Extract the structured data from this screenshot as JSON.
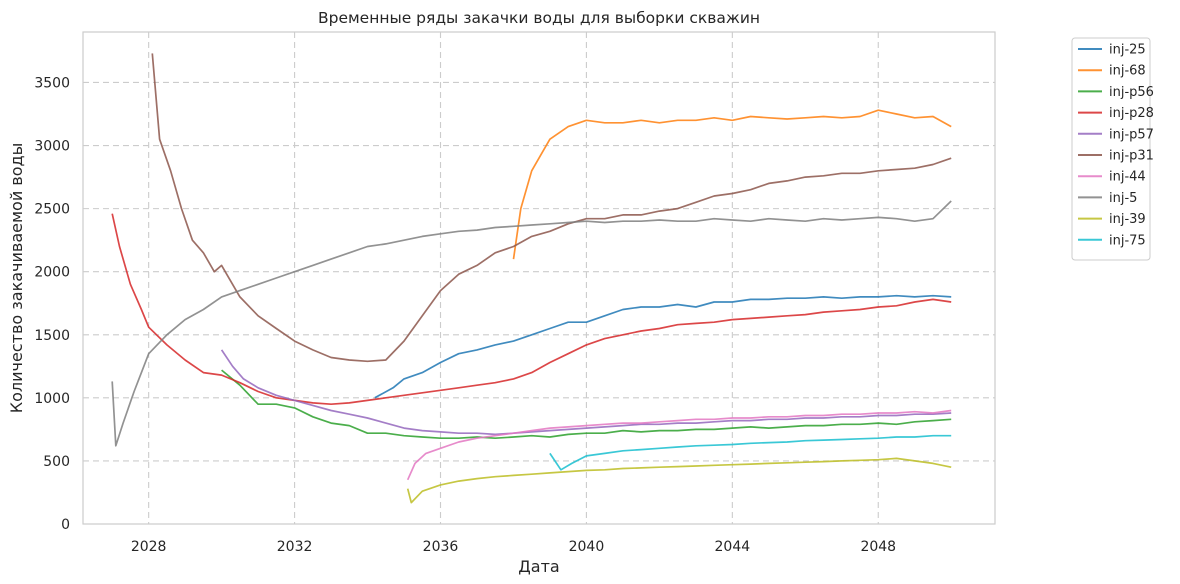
{
  "chart_data": {
    "type": "line",
    "title": "Временные ряды закачки воды для выборки скважин",
    "xlabel": "Дата",
    "ylabel": "Количество закачиваемой воды",
    "xlim": [
      2026.2,
      2051.2
    ],
    "ylim": [
      0,
      3900
    ],
    "x_ticks": [
      2028,
      2032,
      2036,
      2040,
      2044,
      2048
    ],
    "y_ticks": [
      0,
      500,
      1000,
      1500,
      2000,
      2500,
      3000,
      3500
    ],
    "grid": true,
    "legend_position": "outside-right",
    "series": [
      {
        "name": "inj-25",
        "color": "#1f77b4",
        "x": [
          2034.2,
          2034.7,
          2035.0,
          2035.5,
          2036.0,
          2036.5,
          2037.0,
          2037.5,
          2038.0,
          2038.5,
          2039.0,
          2039.5,
          2040.0,
          2040.5,
          2041.0,
          2041.5,
          2042.0,
          2042.5,
          2043.0,
          2043.5,
          2044.0,
          2044.5,
          2045.0,
          2045.5,
          2046.0,
          2046.5,
          2047.0,
          2047.5,
          2048.0,
          2048.5,
          2049.0,
          2049.5,
          2050.0
        ],
        "y": [
          1000,
          1080,
          1150,
          1200,
          1280,
          1350,
          1380,
          1420,
          1450,
          1500,
          1550,
          1600,
          1600,
          1650,
          1700,
          1720,
          1720,
          1740,
          1720,
          1760,
          1760,
          1780,
          1780,
          1790,
          1790,
          1800,
          1790,
          1800,
          1800,
          1810,
          1800,
          1810,
          1800
        ]
      },
      {
        "name": "inj-68",
        "color": "#ff7f0e",
        "x": [
          2038.0,
          2038.2,
          2038.5,
          2038.8,
          2039.0,
          2039.5,
          2040.0,
          2040.5,
          2041.0,
          2041.5,
          2042.0,
          2042.5,
          2043.0,
          2043.5,
          2044.0,
          2044.5,
          2045.0,
          2045.5,
          2046.0,
          2046.5,
          2047.0,
          2047.5,
          2048.0,
          2048.5,
          2049.0,
          2049.5,
          2050.0
        ],
        "y": [
          2100,
          2500,
          2800,
          2950,
          3050,
          3150,
          3200,
          3180,
          3180,
          3200,
          3180,
          3200,
          3200,
          3220,
          3200,
          3230,
          3220,
          3210,
          3220,
          3230,
          3220,
          3230,
          3280,
          3250,
          3220,
          3230,
          3150
        ]
      },
      {
        "name": "inj-p56",
        "color": "#2ca02c",
        "x": [
          2030.0,
          2030.5,
          2031.0,
          2031.5,
          2032.0,
          2032.5,
          2033.0,
          2033.5,
          2034.0,
          2034.5,
          2035.0,
          2035.5,
          2036.0,
          2036.5,
          2037.0,
          2037.5,
          2038.0,
          2038.5,
          2039.0,
          2039.5,
          2040.0,
          2040.5,
          2041.0,
          2041.5,
          2042.0,
          2042.5,
          2043.0,
          2043.5,
          2044.0,
          2044.5,
          2045.0,
          2045.5,
          2046.0,
          2046.5,
          2047.0,
          2047.5,
          2048.0,
          2048.5,
          2049.0,
          2049.5,
          2050.0
        ],
        "y": [
          1220,
          1100,
          950,
          950,
          920,
          850,
          800,
          780,
          720,
          720,
          700,
          690,
          680,
          680,
          690,
          680,
          690,
          700,
          690,
          710,
          720,
          720,
          740,
          730,
          740,
          740,
          750,
          750,
          760,
          770,
          760,
          770,
          780,
          780,
          790,
          790,
          800,
          790,
          810,
          820,
          830
        ]
      },
      {
        "name": "inj-p28",
        "color": "#d62728",
        "x": [
          2027.0,
          2027.2,
          2027.5,
          2027.8,
          2028.0,
          2028.5,
          2029.0,
          2029.5,
          2030.0,
          2030.5,
          2031.0,
          2031.5,
          2032.0,
          2032.5,
          2033.0,
          2033.5,
          2034.0,
          2034.5,
          2035.0,
          2035.5,
          2036.0,
          2036.5,
          2037.0,
          2037.5,
          2038.0,
          2038.5,
          2039.0,
          2039.5,
          2040.0,
          2040.5,
          2041.0,
          2041.5,
          2042.0,
          2042.5,
          2043.0,
          2043.5,
          2044.0,
          2044.5,
          2045.0,
          2045.5,
          2046.0,
          2046.5,
          2047.0,
          2047.5,
          2048.0,
          2048.5,
          2049.0,
          2049.5,
          2050.0
        ],
        "y": [
          2460,
          2200,
          1900,
          1700,
          1560,
          1420,
          1300,
          1200,
          1180,
          1120,
          1050,
          1000,
          980,
          960,
          950,
          960,
          980,
          1000,
          1020,
          1040,
          1060,
          1080,
          1100,
          1120,
          1150,
          1200,
          1280,
          1350,
          1420,
          1470,
          1500,
          1530,
          1550,
          1580,
          1590,
          1600,
          1620,
          1630,
          1640,
          1650,
          1660,
          1680,
          1690,
          1700,
          1720,
          1730,
          1760,
          1780,
          1760
        ]
      },
      {
        "name": "inj-p57",
        "color": "#9467bd",
        "x": [
          2030.0,
          2030.3,
          2030.6,
          2031.0,
          2031.5,
          2032.0,
          2032.5,
          2033.0,
          2033.5,
          2034.0,
          2034.5,
          2035.0,
          2035.5,
          2036.0,
          2036.5,
          2037.0,
          2037.5,
          2038.0,
          2038.5,
          2039.0,
          2039.5,
          2040.0,
          2040.5,
          2041.0,
          2041.5,
          2042.0,
          2042.5,
          2043.0,
          2043.5,
          2044.0,
          2044.5,
          2045.0,
          2045.5,
          2046.0,
          2046.5,
          2047.0,
          2047.5,
          2048.0,
          2048.5,
          2049.0,
          2049.5,
          2050.0
        ],
        "y": [
          1380,
          1250,
          1150,
          1080,
          1020,
          980,
          940,
          900,
          870,
          840,
          800,
          760,
          740,
          730,
          720,
          720,
          710,
          720,
          730,
          740,
          750,
          760,
          770,
          780,
          790,
          790,
          800,
          800,
          810,
          820,
          820,
          830,
          830,
          840,
          840,
          850,
          850,
          860,
          860,
          870,
          870,
          880
        ]
      },
      {
        "name": "inj-p31",
        "color": "#8c564b",
        "x": [
          2028.1,
          2028.3,
          2028.6,
          2028.9,
          2029.2,
          2029.5,
          2029.8,
          2030.0,
          2030.5,
          2031.0,
          2031.5,
          2032.0,
          2032.5,
          2033.0,
          2033.5,
          2034.0,
          2034.5,
          2035.0,
          2035.5,
          2036.0,
          2036.5,
          2037.0,
          2037.5,
          2038.0,
          2038.5,
          2039.0,
          2039.5,
          2040.0,
          2040.5,
          2041.0,
          2041.5,
          2042.0,
          2042.5,
          2043.0,
          2043.5,
          2044.0,
          2044.5,
          2045.0,
          2045.5,
          2046.0,
          2046.5,
          2047.0,
          2047.5,
          2048.0,
          2048.5,
          2049.0,
          2049.5,
          2050.0
        ],
        "y": [
          3730,
          3050,
          2800,
          2500,
          2250,
          2150,
          2000,
          2050,
          1800,
          1650,
          1550,
          1450,
          1380,
          1320,
          1300,
          1290,
          1300,
          1450,
          1650,
          1850,
          1980,
          2050,
          2150,
          2200,
          2280,
          2320,
          2380,
          2420,
          2420,
          2450,
          2450,
          2480,
          2500,
          2550,
          2600,
          2620,
          2650,
          2700,
          2720,
          2750,
          2760,
          2780,
          2780,
          2800,
          2810,
          2820,
          2850,
          2900
        ]
      },
      {
        "name": "inj-44",
        "color": "#e377c2",
        "x": [
          2035.1,
          2035.3,
          2035.6,
          2036.0,
          2036.5,
          2037.0,
          2037.5,
          2038.0,
          2038.5,
          2039.0,
          2039.5,
          2040.0,
          2040.5,
          2041.0,
          2041.5,
          2042.0,
          2042.5,
          2043.0,
          2043.5,
          2044.0,
          2044.5,
          2045.0,
          2045.5,
          2046.0,
          2046.5,
          2047.0,
          2047.5,
          2048.0,
          2048.5,
          2049.0,
          2049.5,
          2050.0
        ],
        "y": [
          350,
          480,
          560,
          600,
          650,
          680,
          700,
          720,
          740,
          760,
          770,
          780,
          790,
          800,
          800,
          810,
          820,
          830,
          830,
          840,
          840,
          850,
          850,
          860,
          860,
          870,
          870,
          880,
          880,
          890,
          880,
          900
        ]
      },
      {
        "name": "inj-5",
        "color": "#7f7f7f",
        "x": [
          2027.0,
          2027.1,
          2027.3,
          2027.6,
          2028.0,
          2028.5,
          2029.0,
          2029.5,
          2030.0,
          2030.5,
          2031.0,
          2031.5,
          2032.0,
          2032.5,
          2033.0,
          2033.5,
          2034.0,
          2034.5,
          2035.0,
          2035.5,
          2036.0,
          2036.5,
          2037.0,
          2037.5,
          2038.0,
          2038.5,
          2039.0,
          2039.5,
          2040.0,
          2040.5,
          2041.0,
          2041.5,
          2042.0,
          2042.5,
          2043.0,
          2043.5,
          2044.0,
          2044.5,
          2045.0,
          2045.5,
          2046.0,
          2046.5,
          2047.0,
          2047.5,
          2048.0,
          2048.5,
          2049.0,
          2049.5,
          2050.0
        ],
        "y": [
          1130,
          620,
          800,
          1050,
          1350,
          1500,
          1620,
          1700,
          1800,
          1850,
          1900,
          1950,
          2000,
          2050,
          2100,
          2150,
          2200,
          2220,
          2250,
          2280,
          2300,
          2320,
          2330,
          2350,
          2360,
          2370,
          2380,
          2390,
          2400,
          2390,
          2400,
          2400,
          2410,
          2400,
          2400,
          2420,
          2410,
          2400,
          2420,
          2410,
          2400,
          2420,
          2410,
          2420,
          2430,
          2420,
          2400,
          2420,
          2560
        ]
      },
      {
        "name": "inj-39",
        "color": "#bcbd22",
        "x": [
          2035.1,
          2035.2,
          2035.5,
          2036.0,
          2036.5,
          2037.0,
          2037.5,
          2038.0,
          2038.5,
          2039.0,
          2039.5,
          2040.0,
          2040.5,
          2041.0,
          2041.5,
          2042.0,
          2042.5,
          2043.0,
          2043.5,
          2044.0,
          2044.5,
          2045.0,
          2045.5,
          2046.0,
          2046.5,
          2047.0,
          2047.5,
          2048.0,
          2048.5,
          2049.0,
          2049.5,
          2050.0
        ],
        "y": [
          280,
          170,
          260,
          310,
          340,
          360,
          375,
          385,
          395,
          405,
          415,
          425,
          430,
          440,
          445,
          450,
          455,
          460,
          465,
          470,
          475,
          480,
          485,
          490,
          495,
          500,
          505,
          510,
          520,
          500,
          480,
          450
        ]
      },
      {
        "name": "inj-75",
        "color": "#17becf",
        "x": [
          2039.0,
          2039.3,
          2039.6,
          2040.0,
          2040.5,
          2041.0,
          2041.5,
          2042.0,
          2042.5,
          2043.0,
          2043.5,
          2044.0,
          2044.5,
          2045.0,
          2045.5,
          2046.0,
          2046.5,
          2047.0,
          2047.5,
          2048.0,
          2048.5,
          2049.0,
          2049.5,
          2050.0
        ],
        "y": [
          560,
          430,
          480,
          540,
          560,
          580,
          590,
          600,
          610,
          620,
          625,
          630,
          640,
          645,
          650,
          660,
          665,
          670,
          675,
          680,
          690,
          690,
          700,
          700
        ]
      }
    ]
  }
}
